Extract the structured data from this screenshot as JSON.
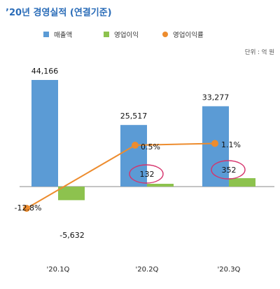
{
  "title": "’20년 경영실적 (연결기준)",
  "unit": "단위 : 억 원",
  "colors": {
    "title": "#2a6cb8",
    "revenue": "#5b9bd5",
    "operating_profit": "#8dc24e",
    "margin_line": "#ed8c2e",
    "highlight_circle": "#d6336c",
    "baseline": "#888888"
  },
  "chart_data": {
    "type": "bar",
    "categories": [
      "'20.1Q",
      "'20.2Q",
      "'20.3Q"
    ],
    "series": [
      {
        "name": "매출액",
        "type": "bar",
        "values": [
          44166,
          25517,
          33277
        ],
        "labels": [
          "44,166",
          "25,517",
          "33,277"
        ],
        "color": "#5b9bd5"
      },
      {
        "name": "영업이익",
        "type": "bar",
        "values": [
          -5632,
          132,
          352
        ],
        "labels": [
          "-5,632",
          "132",
          "352"
        ],
        "color": "#8dc24e"
      },
      {
        "name": "영업이익률",
        "type": "line",
        "values": [
          -12.8,
          0.5,
          1.1
        ],
        "labels": [
          "-12.8%",
          "0.5%",
          "1.1%"
        ],
        "color": "#ed8c2e"
      }
    ],
    "highlighted_values": [
      "132",
      "352"
    ],
    "legend_position": "top",
    "grid": false
  }
}
